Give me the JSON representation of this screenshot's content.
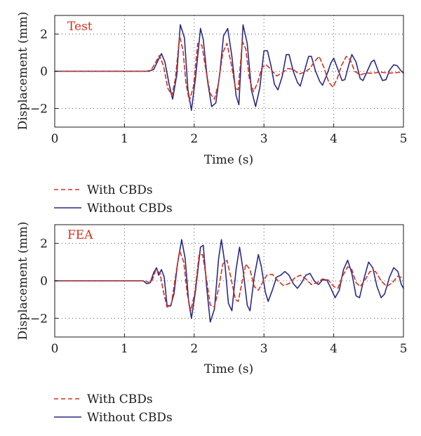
{
  "chart_data": [
    {
      "type": "line",
      "panel_label": "Test",
      "xlabel": "Time (s)",
      "ylabel": "Displacement (mm)",
      "xlim": [
        0,
        5
      ],
      "ylim": [
        -3,
        3
      ],
      "xticks": [
        0,
        1,
        2,
        3,
        4,
        5
      ],
      "yticks": [
        -2,
        0,
        2
      ],
      "grid": "dotted",
      "legend_position": "below",
      "series": [
        {
          "name": "With CBDs",
          "color": "#d0321e",
          "style": "dashed",
          "points": [
            [
              0,
              0
            ],
            [
              1.3,
              0
            ],
            [
              1.38,
              0.05
            ],
            [
              1.45,
              0.5
            ],
            [
              1.5,
              0.85
            ],
            [
              1.56,
              0.3
            ],
            [
              1.62,
              -0.9
            ],
            [
              1.68,
              -1.3
            ],
            [
              1.73,
              -0.4
            ],
            [
              1.79,
              1.9
            ],
            [
              1.84,
              1.1
            ],
            [
              1.88,
              -0.6
            ],
            [
              1.93,
              -1.6
            ],
            [
              1.99,
              -0.8
            ],
            [
              2.05,
              1.5
            ],
            [
              2.11,
              1.4
            ],
            [
              2.17,
              0.0
            ],
            [
              2.23,
              -1.2
            ],
            [
              2.29,
              -1.5
            ],
            [
              2.35,
              -0.6
            ],
            [
              2.41,
              1.0
            ],
            [
              2.47,
              1.5
            ],
            [
              2.53,
              0.4
            ],
            [
              2.59,
              -0.9
            ],
            [
              2.63,
              -1.0
            ],
            [
              2.69,
              1.6
            ],
            [
              2.74,
              1.2
            ],
            [
              2.79,
              -0.4
            ],
            [
              2.85,
              -1.1
            ],
            [
              2.91,
              -0.6
            ],
            [
              2.97,
              0.2
            ],
            [
              3.03,
              0.35
            ],
            [
              3.1,
              0.1
            ],
            [
              3.18,
              -0.25
            ],
            [
              3.26,
              -0.1
            ],
            [
              3.34,
              0.15
            ],
            [
              3.42,
              0.1
            ],
            [
              3.5,
              -0.15
            ],
            [
              3.58,
              -0.05
            ],
            [
              3.66,
              0.15
            ],
            [
              3.72,
              0.5
            ],
            [
              3.79,
              0.8
            ],
            [
              3.86,
              0.2
            ],
            [
              3.93,
              -0.6
            ],
            [
              3.99,
              -0.85
            ],
            [
              4.05,
              -0.4
            ],
            [
              4.11,
              0.3
            ],
            [
              4.18,
              0.8
            ],
            [
              4.24,
              0.6
            ],
            [
              4.3,
              0.0
            ],
            [
              4.38,
              -0.2
            ],
            [
              4.46,
              -0.1
            ],
            [
              4.56,
              -0.1
            ],
            [
              4.66,
              -0.05
            ],
            [
              4.8,
              -0.1
            ],
            [
              5,
              -0.05
            ]
          ]
        },
        {
          "name": "Without CBDs",
          "color": "#2a2a86",
          "style": "solid",
          "points": [
            [
              0,
              0
            ],
            [
              1.35,
              0
            ],
            [
              1.42,
              0.1
            ],
            [
              1.47,
              0.5
            ],
            [
              1.53,
              0.95
            ],
            [
              1.58,
              0.5
            ],
            [
              1.64,
              -0.7
            ],
            [
              1.69,
              -1.5
            ],
            [
              1.75,
              -0.2
            ],
            [
              1.8,
              2.5
            ],
            [
              1.86,
              1.8
            ],
            [
              1.91,
              -1.0
            ],
            [
              1.96,
              -2.1
            ],
            [
              2.02,
              -0.3
            ],
            [
              2.09,
              2.3
            ],
            [
              2.13,
              1.7
            ],
            [
              2.19,
              -0.5
            ],
            [
              2.25,
              -1.9
            ],
            [
              2.31,
              -1.7
            ],
            [
              2.37,
              0.0
            ],
            [
              2.42,
              1.9
            ],
            [
              2.48,
              2.3
            ],
            [
              2.54,
              0.8
            ],
            [
              2.6,
              -1.3
            ],
            [
              2.64,
              -1.8
            ],
            [
              2.7,
              2.5
            ],
            [
              2.76,
              1.5
            ],
            [
              2.82,
              -1.0
            ],
            [
              2.88,
              -1.9
            ],
            [
              2.94,
              -0.9
            ],
            [
              3.0,
              1.1
            ],
            [
              3.05,
              1.1
            ],
            [
              3.1,
              0.3
            ],
            [
              3.15,
              -0.7
            ],
            [
              3.2,
              -1.0
            ],
            [
              3.26,
              -0.3
            ],
            [
              3.32,
              0.9
            ],
            [
              3.36,
              0.9
            ],
            [
              3.42,
              0.0
            ],
            [
              3.48,
              -0.6
            ],
            [
              3.52,
              -0.8
            ],
            [
              3.58,
              0.0
            ],
            [
              3.64,
              0.8
            ],
            [
              3.68,
              0.8
            ],
            [
              3.74,
              0.0
            ],
            [
              3.8,
              -0.55
            ],
            [
              3.84,
              -0.75
            ],
            [
              3.9,
              -0.2
            ],
            [
              3.96,
              0.45
            ],
            [
              4.0,
              0.7
            ],
            [
              4.06,
              0.1
            ],
            [
              4.12,
              -0.5
            ],
            [
              4.16,
              -0.45
            ],
            [
              4.22,
              0.4
            ],
            [
              4.26,
              0.9
            ],
            [
              4.32,
              0.5
            ],
            [
              4.38,
              -0.4
            ],
            [
              4.42,
              -0.5
            ],
            [
              4.48,
              0.0
            ],
            [
              4.54,
              0.5
            ],
            [
              4.58,
              0.6
            ],
            [
              4.64,
              0.0
            ],
            [
              4.7,
              -0.5
            ],
            [
              4.75,
              -0.45
            ],
            [
              4.8,
              0.05
            ],
            [
              4.86,
              0.35
            ],
            [
              4.91,
              0.3
            ],
            [
              4.96,
              0.05
            ],
            [
              5,
              -0.1
            ]
          ]
        }
      ]
    },
    {
      "type": "line",
      "panel_label": "FEA",
      "xlabel": "Time (s)",
      "ylabel": "Displacement (mm)",
      "xlim": [
        0,
        5
      ],
      "ylim": [
        -3,
        3
      ],
      "xticks": [
        0,
        1,
        2,
        3,
        4,
        5
      ],
      "yticks": [
        -2,
        0,
        2
      ],
      "grid": "dotted",
      "legend_position": "below",
      "series": [
        {
          "name": "With CBDs",
          "color": "#d0321e",
          "style": "dashed",
          "points": [
            [
              0,
              0
            ],
            [
              1.3,
              0
            ],
            [
              1.36,
              -0.1
            ],
            [
              1.4,
              0.05
            ],
            [
              1.45,
              0.6
            ],
            [
              1.51,
              0.4
            ],
            [
              1.56,
              -0.6
            ],
            [
              1.61,
              -1.4
            ],
            [
              1.67,
              -1.3
            ],
            [
              1.73,
              0.2
            ],
            [
              1.79,
              1.6
            ],
            [
              1.85,
              1.0
            ],
            [
              1.9,
              -0.7
            ],
            [
              1.95,
              -1.6
            ],
            [
              2.01,
              -0.6
            ],
            [
              2.07,
              1.4
            ],
            [
              2.12,
              1.4
            ],
            [
              2.18,
              0.0
            ],
            [
              2.23,
              -1.3
            ],
            [
              2.29,
              -1.4
            ],
            [
              2.35,
              -0.4
            ],
            [
              2.41,
              0.9
            ],
            [
              2.47,
              1.1
            ],
            [
              2.53,
              0.1
            ],
            [
              2.59,
              -1.0
            ],
            [
              2.63,
              -1.1
            ],
            [
              2.69,
              0.0
            ],
            [
              2.74,
              0.9
            ],
            [
              2.8,
              0.6
            ],
            [
              2.86,
              -0.3
            ],
            [
              2.92,
              -0.5
            ],
            [
              2.98,
              -0.1
            ],
            [
              3.04,
              0.3
            ],
            [
              3.12,
              0.35
            ],
            [
              3.2,
              0.0
            ],
            [
              3.28,
              -0.25
            ],
            [
              3.36,
              -0.15
            ],
            [
              3.44,
              0.15
            ],
            [
              3.52,
              0.3
            ],
            [
              3.6,
              0.1
            ],
            [
              3.68,
              -0.2
            ],
            [
              3.76,
              -0.1
            ],
            [
              3.84,
              0.1
            ],
            [
              3.92,
              0.05
            ],
            [
              4.0,
              -0.3
            ],
            [
              4.06,
              -0.4
            ],
            [
              4.12,
              0.2
            ],
            [
              4.2,
              0.75
            ],
            [
              4.26,
              0.6
            ],
            [
              4.32,
              -0.1
            ],
            [
              4.38,
              -0.3
            ],
            [
              4.44,
              0.0
            ],
            [
              4.52,
              0.5
            ],
            [
              4.6,
              0.5
            ],
            [
              4.68,
              0.0
            ],
            [
              4.76,
              -0.3
            ],
            [
              4.84,
              -0.1
            ],
            [
              4.92,
              0.25
            ],
            [
              5,
              0.15
            ]
          ]
        },
        {
          "name": "Without CBDs",
          "color": "#2a2a86",
          "style": "solid",
          "points": [
            [
              0,
              0
            ],
            [
              1.27,
              0
            ],
            [
              1.32,
              -0.15
            ],
            [
              1.37,
              -0.1
            ],
            [
              1.42,
              0.45
            ],
            [
              1.46,
              0.7
            ],
            [
              1.49,
              0.3
            ],
            [
              1.53,
              0.6
            ],
            [
              1.57,
              0.2
            ],
            [
              1.61,
              -1.3
            ],
            [
              1.66,
              -1.35
            ],
            [
              1.71,
              -0.7
            ],
            [
              1.76,
              0.9
            ],
            [
              1.82,
              2.2
            ],
            [
              1.87,
              1.2
            ],
            [
              1.92,
              -1.1
            ],
            [
              1.96,
              -2.0
            ],
            [
              2.02,
              -0.5
            ],
            [
              2.09,
              1.8
            ],
            [
              2.13,
              1.9
            ],
            [
              2.18,
              -0.4
            ],
            [
              2.23,
              -2.2
            ],
            [
              2.29,
              -1.5
            ],
            [
              2.35,
              1.2
            ],
            [
              2.39,
              2.2
            ],
            [
              2.44,
              0.9
            ],
            [
              2.49,
              -1.2
            ],
            [
              2.54,
              -1.6
            ],
            [
              2.6,
              0.6
            ],
            [
              2.65,
              1.8
            ],
            [
              2.7,
              0.6
            ],
            [
              2.76,
              -1.3
            ],
            [
              2.8,
              -1.6
            ],
            [
              2.86,
              0.2
            ],
            [
              2.92,
              1.4
            ],
            [
              2.96,
              0.8
            ],
            [
              3.02,
              -0.6
            ],
            [
              3.06,
              -1.1
            ],
            [
              3.12,
              -0.5
            ],
            [
              3.18,
              0.2
            ],
            [
              3.24,
              0.3
            ],
            [
              3.3,
              0.5
            ],
            [
              3.36,
              0.3
            ],
            [
              3.42,
              -0.15
            ],
            [
              3.48,
              -0.4
            ],
            [
              3.54,
              -0.1
            ],
            [
              3.6,
              0.3
            ],
            [
              3.66,
              0.4
            ],
            [
              3.72,
              0.0
            ],
            [
              3.78,
              -0.2
            ],
            [
              3.84,
              0.05
            ],
            [
              3.9,
              0.05
            ],
            [
              3.96,
              -0.4
            ],
            [
              4.02,
              -0.9
            ],
            [
              4.08,
              -0.5
            ],
            [
              4.14,
              0.6
            ],
            [
              4.2,
              1.1
            ],
            [
              4.26,
              0.4
            ],
            [
              4.32,
              -0.8
            ],
            [
              4.37,
              -0.9
            ],
            [
              4.44,
              0.2
            ],
            [
              4.5,
              1.0
            ],
            [
              4.56,
              0.7
            ],
            [
              4.62,
              -0.3
            ],
            [
              4.68,
              -0.9
            ],
            [
              4.73,
              -0.7
            ],
            [
              4.8,
              0.2
            ],
            [
              4.86,
              0.7
            ],
            [
              4.92,
              0.5
            ],
            [
              4.97,
              -0.2
            ],
            [
              5,
              -0.4
            ]
          ]
        }
      ]
    }
  ]
}
